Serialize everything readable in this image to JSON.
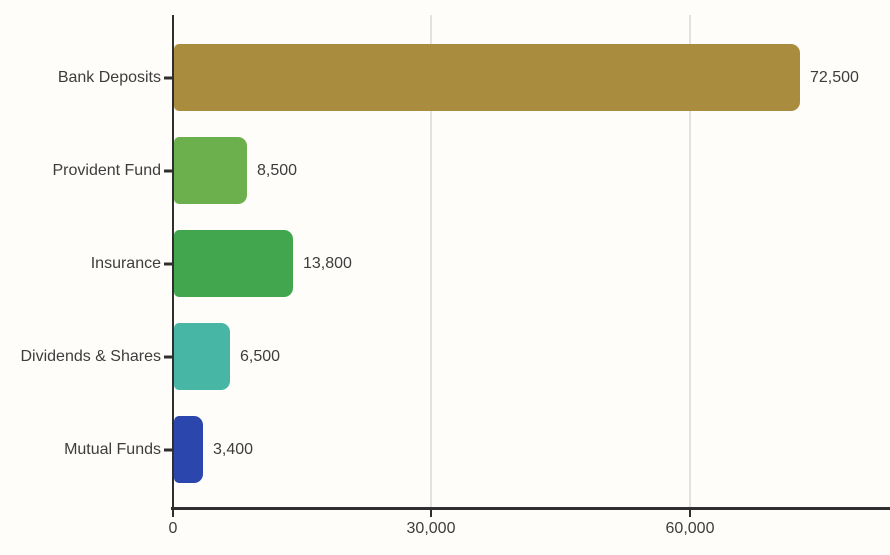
{
  "chart_data": {
    "type": "bar",
    "orientation": "horizontal",
    "title": "",
    "xlabel": "",
    "ylabel": "",
    "categories": [
      "Bank Deposits",
      "Provident Fund",
      "Insurance",
      "Dividends & Shares",
      "Mutual Funds"
    ],
    "values": [
      72500,
      8500,
      13800,
      6500,
      3400
    ],
    "value_labels": [
      "72,500",
      "8,500",
      "13,800",
      "6,500",
      "3,400"
    ],
    "bar_colors": [
      "#aa8c3f",
      "#6cb04d",
      "#41a64e",
      "#48b6a5",
      "#2b47ad"
    ],
    "x_ticks": [
      {
        "value": 0,
        "label": "0"
      },
      {
        "value": 30000,
        "label": "30,000"
      },
      {
        "value": 60000,
        "label": "60,000"
      }
    ],
    "xlim": [
      0,
      83000
    ],
    "grid": "vertical-on-ticks",
    "legend": "none"
  },
  "style": {
    "background_color": "#fffdfa",
    "axis_color": "#2f2f2f",
    "grid_color": "#e2e2e2",
    "text_color": "#3d3d3d"
  }
}
